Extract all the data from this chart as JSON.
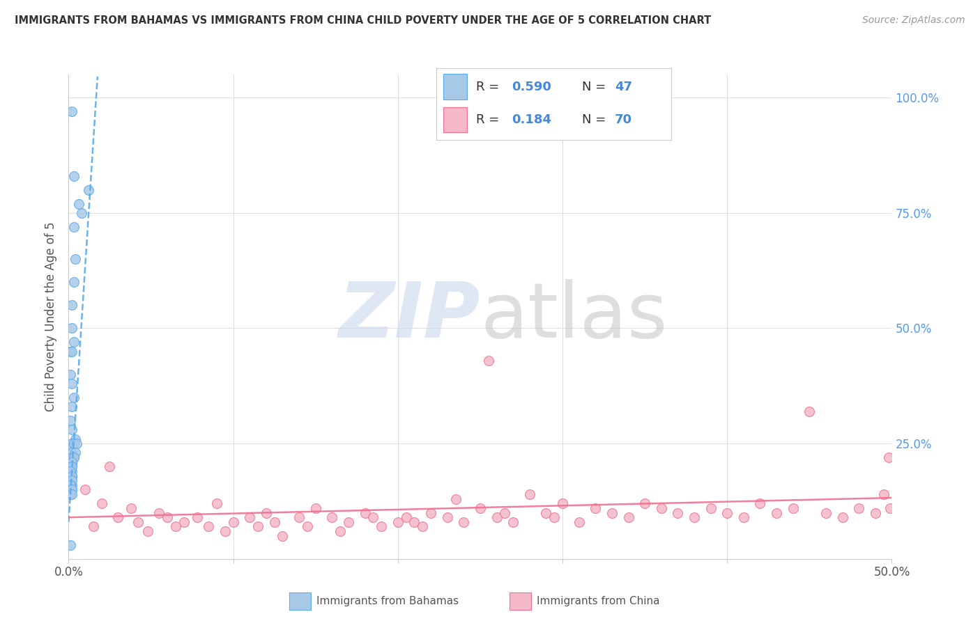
{
  "title": "IMMIGRANTS FROM BAHAMAS VS IMMIGRANTS FROM CHINA CHILD POVERTY UNDER THE AGE OF 5 CORRELATION CHART",
  "source": "Source: ZipAtlas.com",
  "ylabel": "Child Poverty Under the Age of 5",
  "xlim": [
    0.0,
    0.5
  ],
  "ylim": [
    0.0,
    1.05
  ],
  "r_bahamas": 0.59,
  "n_bahamas": 47,
  "r_china": 0.184,
  "n_china": 70,
  "legend_label_bahamas": "Immigrants from Bahamas",
  "legend_label_china": "Immigrants from China",
  "color_bahamas": "#a8c8e8",
  "color_china": "#f4b8c8",
  "trendline_color_bahamas": "#5aaae8",
  "trendline_color_china": "#f07090",
  "watermark_color_zip": "#c8d8ec",
  "watermark_color_atlas": "#c8c8c8",
  "bahamas_x": [
    0.002,
    0.003,
    0.012,
    0.008,
    0.004,
    0.003,
    0.002,
    0.002,
    0.001,
    0.006,
    0.003,
    0.003,
    0.002,
    0.001,
    0.002,
    0.003,
    0.002,
    0.001,
    0.002,
    0.004,
    0.002,
    0.001,
    0.002,
    0.003,
    0.002,
    0.001,
    0.002,
    0.002,
    0.001,
    0.002,
    0.002,
    0.001,
    0.003,
    0.002,
    0.002,
    0.005,
    0.004,
    0.003,
    0.002,
    0.002,
    0.001,
    0.002,
    0.002,
    0.001,
    0.002,
    0.001,
    0.002
  ],
  "bahamas_y": [
    0.97,
    0.83,
    0.8,
    0.75,
    0.65,
    0.6,
    0.55,
    0.5,
    0.45,
    0.77,
    0.72,
    0.47,
    0.45,
    0.4,
    0.38,
    0.35,
    0.33,
    0.3,
    0.28,
    0.26,
    0.25,
    0.24,
    0.23,
    0.22,
    0.21,
    0.2,
    0.19,
    0.18,
    0.17,
    0.16,
    0.15,
    0.14,
    0.25,
    0.22,
    0.2,
    0.25,
    0.23,
    0.22,
    0.21,
    0.2,
    0.19,
    0.18,
    0.17,
    0.16,
    0.15,
    0.03,
    0.14
  ],
  "china_x": [
    0.01,
    0.015,
    0.02,
    0.025,
    0.03,
    0.038,
    0.042,
    0.048,
    0.055,
    0.06,
    0.065,
    0.07,
    0.078,
    0.085,
    0.09,
    0.095,
    0.1,
    0.11,
    0.115,
    0.12,
    0.125,
    0.13,
    0.14,
    0.145,
    0.15,
    0.16,
    0.165,
    0.17,
    0.18,
    0.185,
    0.19,
    0.2,
    0.205,
    0.21,
    0.215,
    0.22,
    0.23,
    0.235,
    0.24,
    0.25,
    0.255,
    0.26,
    0.265,
    0.27,
    0.28,
    0.29,
    0.295,
    0.3,
    0.31,
    0.32,
    0.33,
    0.34,
    0.35,
    0.36,
    0.37,
    0.38,
    0.39,
    0.4,
    0.41,
    0.42,
    0.43,
    0.44,
    0.45,
    0.46,
    0.47,
    0.48,
    0.49,
    0.495,
    0.498,
    0.499
  ],
  "china_y": [
    0.15,
    0.07,
    0.12,
    0.2,
    0.09,
    0.11,
    0.08,
    0.06,
    0.1,
    0.09,
    0.07,
    0.08,
    0.09,
    0.07,
    0.12,
    0.06,
    0.08,
    0.09,
    0.07,
    0.1,
    0.08,
    0.05,
    0.09,
    0.07,
    0.11,
    0.09,
    0.06,
    0.08,
    0.1,
    0.09,
    0.07,
    0.08,
    0.09,
    0.08,
    0.07,
    0.1,
    0.09,
    0.13,
    0.08,
    0.11,
    0.43,
    0.09,
    0.1,
    0.08,
    0.14,
    0.1,
    0.09,
    0.12,
    0.08,
    0.11,
    0.1,
    0.09,
    0.12,
    0.11,
    0.1,
    0.09,
    0.11,
    0.1,
    0.09,
    0.12,
    0.1,
    0.11,
    0.32,
    0.1,
    0.09,
    0.11,
    0.1,
    0.14,
    0.22,
    0.11
  ]
}
